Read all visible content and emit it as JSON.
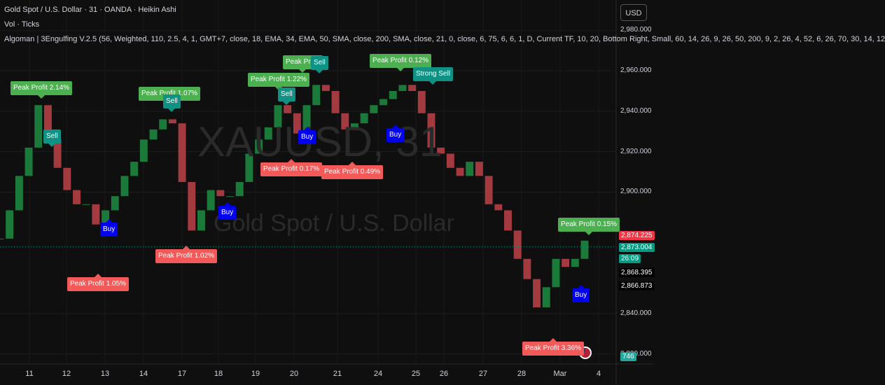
{
  "header": {
    "symbol_line": "Gold Spot / U.S. Dollar · 31 · OANDA · Heikin Ashi",
    "volume_line": "Vol · Ticks",
    "indicator_line": "Algoman | 3Engulfing V.2.5 (56, Weighted, 110, 2.5, 4, 1, GMT+7, close, 18, EMA, 34, EMA, 50, SMA, close, 200, SMA, close, 21, 0, close, 6, 75, 6, 6, 1, D, Current TF, 10, 20, Bottom Right, Small, 60, 14, 26, 9, 26, 50, 200, 9, 2, 26, 4, 52, 6, 26, 70, 30, 14, 12",
    "currency_button": "USD"
  },
  "watermark": {
    "symbol": "XAUUSD, 31",
    "description": "Gold Spot / U.S. Dollar"
  },
  "price_axis": {
    "ylim": [
      2815,
      2995
    ],
    "yticks": [
      {
        "value": 2980,
        "label": "2,980.000"
      },
      {
        "value": 2960,
        "label": "2,960.000"
      },
      {
        "value": 2940,
        "label": "2,940.000"
      },
      {
        "value": 2920,
        "label": "2,920.000"
      },
      {
        "value": 2900,
        "label": "2,900.000"
      },
      {
        "value": 2840,
        "label": "2,840.000"
      },
      {
        "value": 2820,
        "label": "2,820.000"
      }
    ],
    "tags": [
      {
        "value": 2874.225,
        "label": "2,874.225",
        "color": "#f23645"
      },
      {
        "value": 2873.004,
        "label": "2,873.004",
        "color": "#089981"
      },
      {
        "value": 2868.395,
        "label": "2,868.395",
        "color": "#000000"
      },
      {
        "value": 2866.873,
        "label": "2,866.873",
        "color": "#000000"
      }
    ],
    "countdown": "26:09",
    "volume_tag": "746"
  },
  "time_axis": {
    "labels": [
      "11",
      "12",
      "13",
      "14",
      "17",
      "18",
      "19",
      "20",
      "21",
      "24",
      "25",
      "26",
      "27",
      "28",
      "Mar",
      "4"
    ]
  },
  "price_series": {
    "type": "candlestick",
    "up_color": "#1b7a3a",
    "down_color": "#a33a3f",
    "values": [
      2877,
      2891,
      2908,
      2922,
      2943,
      2926,
      2912,
      2901,
      2894,
      2894,
      2884,
      2891,
      2898,
      2908,
      2915,
      2926,
      2931,
      2936,
      2934,
      2905,
      2881,
      2891,
      2901,
      2898,
      2898,
      2905,
      2919,
      2926,
      2932,
      2943,
      2939,
      2929,
      2943,
      2953,
      2950,
      2939,
      2931,
      2934,
      2939,
      2943,
      2946,
      2950,
      2953,
      2950,
      2939,
      2922,
      2919,
      2912,
      2908,
      2915,
      2908,
      2894,
      2891,
      2881,
      2867,
      2857,
      2843,
      2853,
      2867,
      2863,
      2867,
      2876
    ]
  },
  "annotations": [
    {
      "label": "Peak Profit 2.14%",
      "style": "green"
    },
    {
      "label": "Sell",
      "style": "teal"
    },
    {
      "label": "Buy",
      "style": "blue"
    },
    {
      "label": "Peak Profit 1.05%",
      "style": "red"
    },
    {
      "label": "Peak Profit 1.07%",
      "style": "green"
    },
    {
      "label": "Sell",
      "style": "teal"
    },
    {
      "label": "Peak Profit 1.02%",
      "style": "red"
    },
    {
      "label": "Buy",
      "style": "blue"
    },
    {
      "label": "Peak Profit 1.22%",
      "style": "green"
    },
    {
      "label": "Sell",
      "style": "teal"
    },
    {
      "label": "Peak Profit 0.17%",
      "style": "red"
    },
    {
      "label": "Buy",
      "style": "blue"
    },
    {
      "label": "Peak Profit",
      "style": "green"
    },
    {
      "label": "Sell",
      "style": "teal"
    },
    {
      "label": "Peak Profit 0.49%",
      "style": "red"
    },
    {
      "label": "Peak Profit 0.12%",
      "style": "green"
    },
    {
      "label": "Buy",
      "style": "blue"
    },
    {
      "label": "Strong Sell",
      "style": "teal"
    },
    {
      "label": "Peak Profit 0.15%",
      "style": "green"
    },
    {
      "label": "Buy",
      "style": "blue"
    },
    {
      "label": "Peak Profit 3.36%",
      "style": "red"
    }
  ]
}
